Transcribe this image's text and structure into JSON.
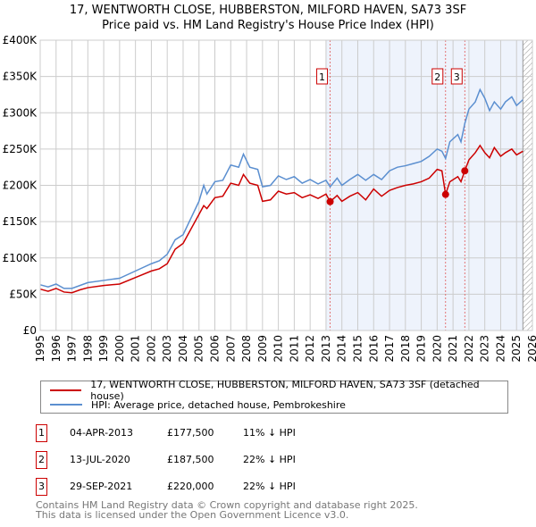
{
  "title": "17, WENTWORTH CLOSE, HUBBERSTON, MILFORD HAVEN, SA73 3SF",
  "subtitle": "Price paid vs. HM Land Registry's House Price Index (HPI)",
  "colors": {
    "property": "#cc0000",
    "hpi": "#5b8fd0",
    "shade": "#eef3fc"
  },
  "chart_data": {
    "type": "line",
    "xlim": [
      1995,
      2026
    ],
    "ylim": [
      0,
      400000
    ],
    "yticks": [
      0,
      50000,
      100000,
      150000,
      200000,
      250000,
      300000,
      350000,
      400000
    ],
    "ytick_labels": [
      "£0",
      "£50K",
      "£100K",
      "£150K",
      "£200K",
      "£250K",
      "£300K",
      "£350K",
      "£400K"
    ],
    "xticks": [
      "1995",
      "1996",
      "1997",
      "1998",
      "1999",
      "2000",
      "2001",
      "2002",
      "2003",
      "2004",
      "2005",
      "2006",
      "2007",
      "2008",
      "2009",
      "2010",
      "2011",
      "2012",
      "2013",
      "2014",
      "2015",
      "2016",
      "2017",
      "2018",
      "2019",
      "2020",
      "2021",
      "2022",
      "2023",
      "2024",
      "2025",
      "2026"
    ],
    "grid": true,
    "series": [
      {
        "name": "17, WENTWORTH CLOSE, HUBBERSTON, MILFORD HAVEN, SA73 3SF (detached house)",
        "color": "#cc0000",
        "x": [
          1995,
          1995.5,
          1996,
          1996.5,
          1997,
          1997.5,
          1998,
          1999,
          2000,
          2001,
          2002,
          2002.5,
          2003,
          2003.5,
          2004,
          2004.5,
          2005,
          2005.3,
          2005.5,
          2006,
          2006.5,
          2007,
          2007.5,
          2007.8,
          2008.2,
          2008.7,
          2009,
          2009.5,
          2010,
          2010.5,
          2011,
          2011.5,
          2012,
          2012.5,
          2013,
          2013.26,
          2013.7,
          2014,
          2014.5,
          2015,
          2015.5,
          2016,
          2016.5,
          2017,
          2017.5,
          2018,
          2018.5,
          2019,
          2019.5,
          2020,
          2020.3,
          2020.53,
          2020.8,
          2021.3,
          2021.5,
          2021.74,
          2022,
          2022.4,
          2022.7,
          2023,
          2023.3,
          2023.6,
          2024,
          2024.3,
          2024.7,
          2025,
          2025.4
        ],
        "y": [
          57000,
          54000,
          58000,
          53000,
          52000,
          56000,
          59000,
          62000,
          64000,
          73000,
          82000,
          85000,
          92000,
          112000,
          120000,
          140000,
          160000,
          172000,
          168000,
          183000,
          185000,
          203000,
          200000,
          215000,
          203000,
          200000,
          178000,
          180000,
          192000,
          188000,
          190000,
          183000,
          187000,
          182000,
          188000,
          177500,
          186000,
          178000,
          185000,
          190000,
          180000,
          195000,
          185000,
          193000,
          197000,
          200000,
          202000,
          205000,
          210000,
          222000,
          220000,
          187500,
          205000,
          212000,
          205000,
          220000,
          235000,
          245000,
          255000,
          245000,
          238000,
          252000,
          240000,
          245000,
          250000,
          242000,
          247000
        ]
      },
      {
        "name": "HPI: Average price, detached house, Pembrokeshire",
        "color": "#5b8fd0",
        "x": [
          1995,
          1995.5,
          1996,
          1996.5,
          1997,
          1997.5,
          1998,
          1999,
          2000,
          2001,
          2002,
          2002.5,
          2003,
          2003.5,
          2004,
          2004.5,
          2005,
          2005.3,
          2005.5,
          2006,
          2006.5,
          2007,
          2007.5,
          2007.8,
          2008.2,
          2008.7,
          2009,
          2009.5,
          2010,
          2010.5,
          2011,
          2011.5,
          2012,
          2012.5,
          2013,
          2013.26,
          2013.7,
          2014,
          2014.5,
          2015,
          2015.5,
          2016,
          2016.5,
          2017,
          2017.5,
          2018,
          2018.5,
          2019,
          2019.5,
          2020,
          2020.3,
          2020.53,
          2020.8,
          2021.3,
          2021.5,
          2021.74,
          2022,
          2022.4,
          2022.7,
          2023,
          2023.3,
          2023.6,
          2024,
          2024.3,
          2024.7,
          2025,
          2025.4
        ],
        "y": [
          63000,
          60000,
          64000,
          58000,
          58000,
          62000,
          66000,
          69000,
          72000,
          82000,
          92000,
          96000,
          105000,
          125000,
          132000,
          155000,
          178000,
          200000,
          188000,
          205000,
          207000,
          228000,
          225000,
          243000,
          225000,
          222000,
          198000,
          200000,
          213000,
          208000,
          212000,
          203000,
          208000,
          202000,
          207000,
          198000,
          210000,
          200000,
          208000,
          215000,
          207000,
          215000,
          208000,
          220000,
          225000,
          227000,
          230000,
          233000,
          240000,
          250000,
          247000,
          237000,
          260000,
          270000,
          260000,
          285000,
          305000,
          315000,
          332000,
          320000,
          303000,
          315000,
          305000,
          315000,
          322000,
          310000,
          318000
        ]
      }
    ],
    "shaded_region": [
      2013,
      2025.4
    ],
    "hatched_region": [
      2025.4,
      2026
    ],
    "annotations": [
      {
        "label": "1",
        "x": 2013.26,
        "y": 177500
      },
      {
        "label": "2",
        "x": 2020.53,
        "y": 187500
      },
      {
        "label": "3",
        "x": 2021.74,
        "y": 220000
      }
    ]
  },
  "legend": {
    "items": [
      "17, WENTWORTH CLOSE, HUBBERSTON, MILFORD HAVEN, SA73 3SF (detached house)",
      "HPI: Average price, detached house, Pembrokeshire"
    ]
  },
  "sales": [
    {
      "num": "1",
      "date": "04-APR-2013",
      "price": "£177,500",
      "diff": "11% ↓ HPI"
    },
    {
      "num": "2",
      "date": "13-JUL-2020",
      "price": "£187,500",
      "diff": "22% ↓ HPI"
    },
    {
      "num": "3",
      "date": "29-SEP-2021",
      "price": "£220,000",
      "diff": "22% ↓ HPI"
    }
  ],
  "footer": {
    "line1": "Contains HM Land Registry data © Crown copyright and database right 2025.",
    "line2": "This data is licensed under the Open Government Licence v3.0."
  }
}
